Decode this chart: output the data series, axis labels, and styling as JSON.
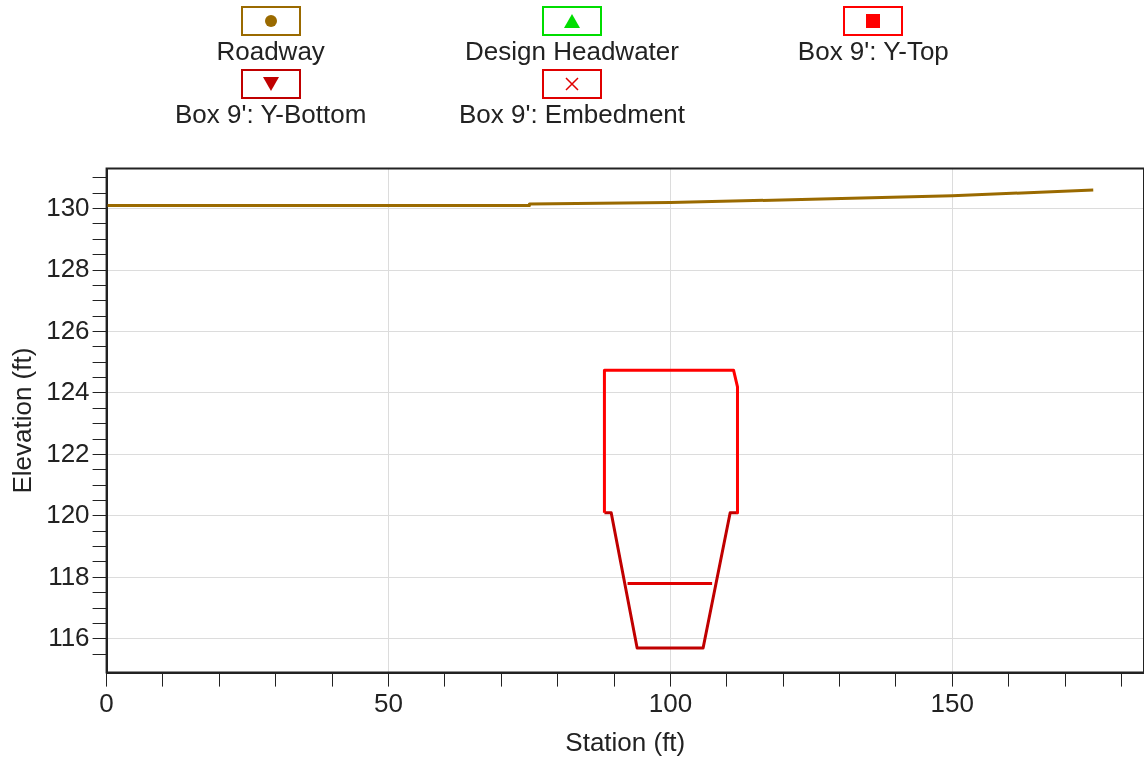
{
  "chart_data": {
    "type": "line",
    "xlabel": "Station (ft)",
    "ylabel": "Elevation (ft)",
    "legend": "top",
    "grid": true,
    "line_style": "solid",
    "xlim": [
      0,
      184
    ],
    "ylim": [
      114.9,
      131.3
    ],
    "xticks": [
      0,
      {
        "value": 10,
        "label": null
      },
      {
        "value": 20,
        "label": null
      },
      {
        "value": 30,
        "label": null
      },
      {
        "value": 40,
        "label": null
      },
      50,
      {
        "value": 60,
        "label": null
      },
      {
        "value": 70,
        "label": null
      },
      {
        "value": 80,
        "label": null
      },
      {
        "value": 90,
        "label": null
      },
      100,
      {
        "value": 110,
        "label": null
      },
      {
        "value": 120,
        "label": null
      },
      {
        "value": 130,
        "label": null
      },
      {
        "value": 140,
        "label": null
      },
      150,
      {
        "value": 160,
        "label": null
      },
      {
        "value": 170,
        "label": null
      },
      {
        "value": 180,
        "label": null
      }
    ],
    "yticks": [
      {
        "value": 115.5,
        "label": null
      },
      116,
      {
        "value": 116.5,
        "label": null
      },
      {
        "value": 117,
        "label": null
      },
      {
        "value": 117.5,
        "label": null
      },
      118,
      {
        "value": 118.5,
        "label": null
      },
      {
        "value": 119,
        "label": null
      },
      {
        "value": 119.5,
        "label": null
      },
      120,
      {
        "value": 120.5,
        "label": null
      },
      {
        "value": 121,
        "label": null
      },
      {
        "value": 121.5,
        "label": null
      },
      122,
      {
        "value": 122.5,
        "label": null
      },
      {
        "value": 123,
        "label": null
      },
      {
        "value": 123.5,
        "label": null
      },
      124,
      {
        "value": 124.5,
        "label": null
      },
      {
        "value": 125,
        "label": null
      },
      {
        "value": 125.5,
        "label": null
      },
      126,
      {
        "value": 126.5,
        "label": null
      },
      {
        "value": 127,
        "label": null
      },
      {
        "value": 127.5,
        "label": null
      },
      128,
      {
        "value": 128.5,
        "label": null
      },
      {
        "value": 129,
        "label": null
      },
      {
        "value": 129.5,
        "label": null
      },
      130,
      {
        "value": 130.5,
        "label": null
      },
      {
        "value": 131,
        "label": null
      }
    ],
    "series": [
      {
        "name": "Roadway",
        "color": "#9a6a00",
        "x": [
          0,
          75,
          75,
          100,
          125,
          150,
          175
        ],
        "values": [
          130.1,
          130.1,
          130.15,
          130.2,
          130.3,
          130.42,
          130.6
        ]
      },
      {
        "name": "Design Headwater",
        "color": "#00dd00"
      },
      {
        "name": "Box 9': Y-Top",
        "color": "#ff0000",
        "x": [
          88.3,
          88.3,
          111.2,
          111.9,
          111.9
        ],
        "values": [
          120.1,
          124.74,
          124.74,
          124.2,
          120.1
        ]
      },
      {
        "name": "Box 9': Y-Bottom",
        "color": "#c00000",
        "x": [
          88.3,
          89.5,
          94.1,
          105.8,
          110.6,
          111.9
        ],
        "values": [
          120.1,
          120.1,
          115.7,
          115.7,
          120.1,
          120.1
        ]
      },
      {
        "name": "Box 9': Embedment",
        "color": "#e00000",
        "x": [
          92.4,
          107.4
        ],
        "values": [
          117.8,
          117.8
        ]
      }
    ]
  }
}
